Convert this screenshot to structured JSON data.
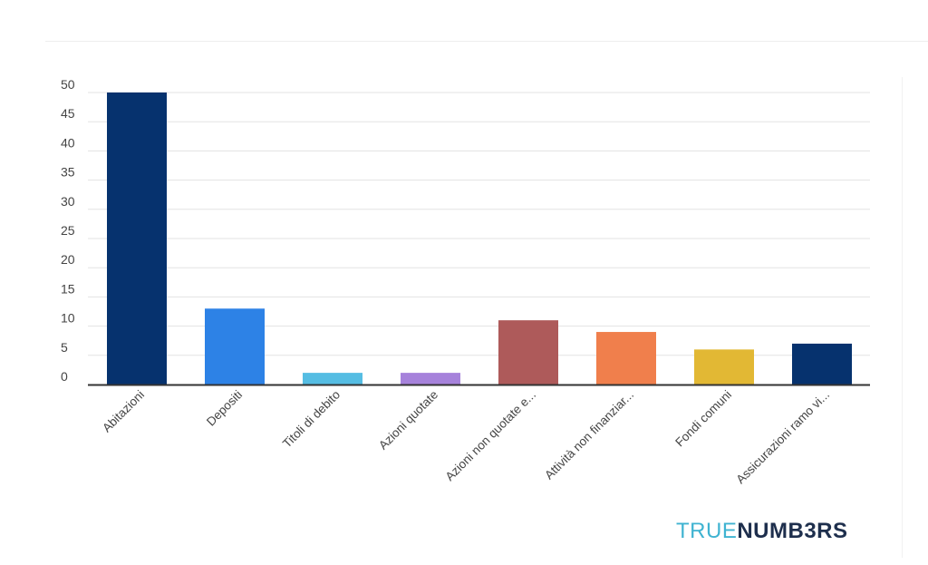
{
  "chart_data": {
    "type": "bar",
    "categories": [
      "Abitazioni",
      "Depositi",
      "Titoli di debito",
      "Azioni quotate",
      "Azioni non quotate e...",
      "Attività non finanziar...",
      "Fondi comuni",
      "Assicurazioni ramo vi..."
    ],
    "values": [
      50,
      13,
      2,
      2,
      11,
      9,
      6,
      7
    ],
    "colors": [
      "#06326e",
      "#2d82e6",
      "#55bde3",
      "#a682db",
      "#ae5a5a",
      "#f07f4c",
      "#e2b834",
      "#06326e"
    ],
    "y_ticks": [
      "0",
      "5",
      "10",
      "15",
      "20",
      "25",
      "30",
      "35",
      "40",
      "45",
      "50"
    ],
    "ylim": [
      0,
      50
    ],
    "grid": true,
    "legend": "none"
  },
  "brand": {
    "part1": "TRUE",
    "part2": "NUMB3RS"
  }
}
